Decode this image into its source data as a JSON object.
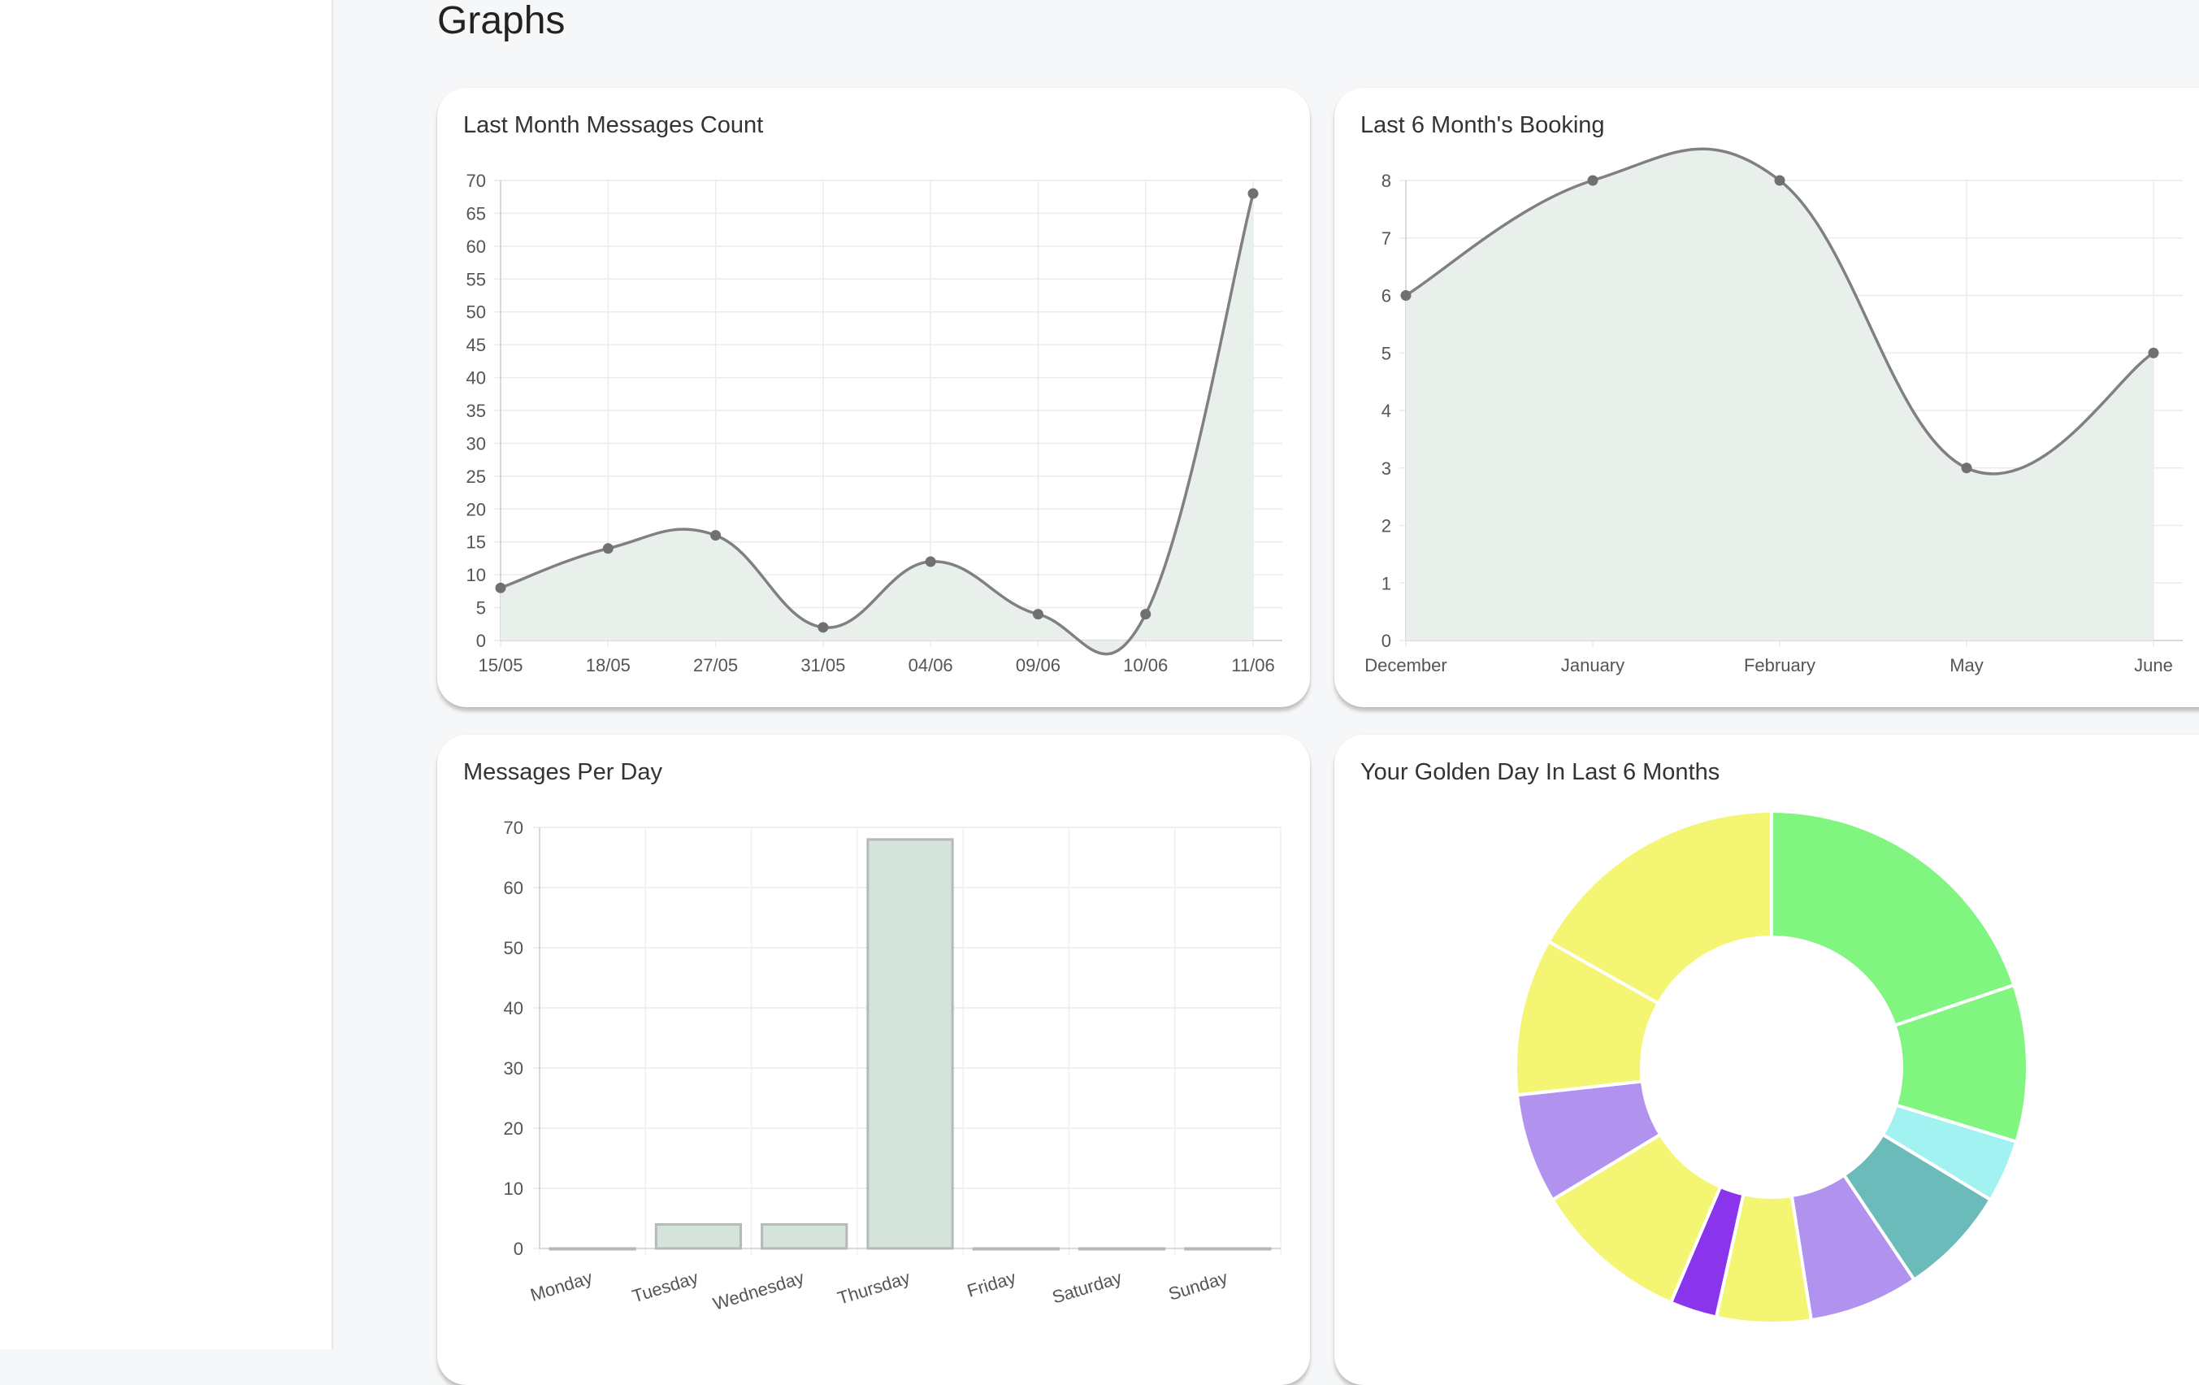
{
  "page_title": "Graphs",
  "chart_data": [
    {
      "type": "area",
      "title": "Last Month Messages Count",
      "categories": [
        "15/05",
        "18/05",
        "27/05",
        "31/05",
        "04/06",
        "09/06",
        "10/06",
        "11/06"
      ],
      "values": [
        8,
        14,
        16,
        2,
        12,
        4,
        4,
        68
      ],
      "ylim": [
        0,
        70
      ],
      "yticks": [
        0,
        5,
        10,
        15,
        20,
        25,
        30,
        35,
        40,
        45,
        50,
        55,
        60,
        65,
        70
      ],
      "grid": true,
      "legend": "none",
      "colors": {
        "line": "#808080",
        "fill": "#e9efeb",
        "point": "#707070"
      }
    },
    {
      "type": "area",
      "title": "Last 6 Month's Booking",
      "categories": [
        "December",
        "January",
        "February",
        "May",
        "June"
      ],
      "values": [
        6,
        8,
        8,
        3,
        5
      ],
      "ylim": [
        0,
        8
      ],
      "yticks": [
        0,
        1,
        2,
        3,
        4,
        5,
        6,
        7,
        8
      ],
      "grid": true,
      "legend": "none",
      "colors": {
        "line": "#808080",
        "fill": "#e9efeb",
        "point": "#707070"
      }
    },
    {
      "type": "bar",
      "title": "Messages Per Day",
      "categories": [
        "Monday",
        "Tuesday",
        "Wednesday",
        "Thursday",
        "Friday",
        "Saturday",
        "Sunday"
      ],
      "values": [
        0,
        4,
        4,
        68,
        0,
        0,
        0
      ],
      "ylim": [
        0,
        70
      ],
      "yticks": [
        0,
        10,
        20,
        30,
        40,
        50,
        60,
        70
      ],
      "grid": true,
      "legend": "none",
      "colors": {
        "bar": "#d5e4da",
        "border": "#b5b9b7"
      }
    },
    {
      "type": "pie",
      "title": "Your Golden Day In Last 6 Months",
      "values": [
        20,
        10,
        4,
        7,
        7,
        6,
        3,
        10,
        7,
        10,
        17
      ],
      "colors": [
        "#80f580",
        "#80f580",
        "#a2f2f2",
        "#6cbbbb",
        "#b192ee",
        "#f5f574",
        "#8a35ec",
        "#f5f574",
        "#b192ee",
        "#f5f574",
        "#f5f574"
      ],
      "legend": "none"
    }
  ]
}
